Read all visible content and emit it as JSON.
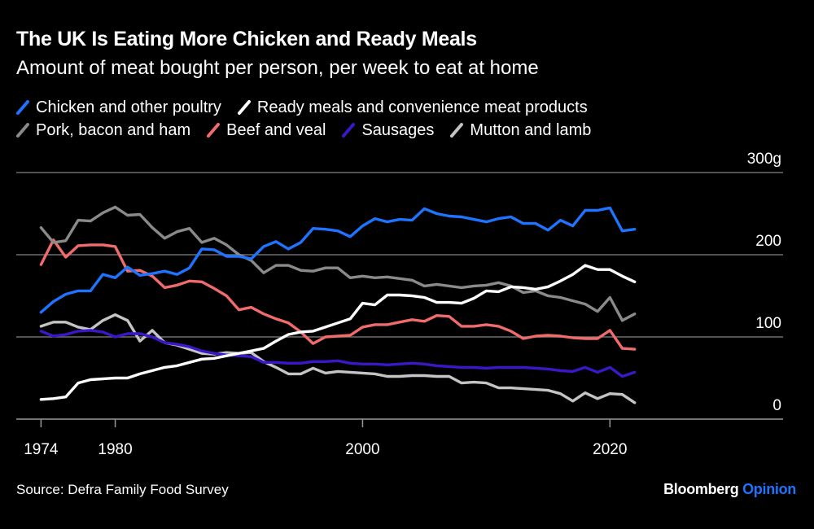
{
  "title": "The UK Is Eating More Chicken and Ready Meals",
  "subtitle": "Amount of meat bought per person, per week to eat at home",
  "source": "Source: Defra Family Food Survey",
  "brand": {
    "name": "Bloomberg",
    "suffix": "Opinion"
  },
  "colors": {
    "background": "#000000",
    "gridline": "#6e6e6e",
    "text": "#ffffff",
    "brand_accent": "#1f74ff"
  },
  "chart_data": {
    "type": "line",
    "title": "The UK Is Eating More Chicken and Ready Meals",
    "subtitle": "Amount of meat bought per person, per week to eat at home",
    "xlabel": "",
    "ylabel": "",
    "y_unit": "g",
    "ylim": [
      0,
      300
    ],
    "y_ticks": [
      {
        "value": 0,
        "label": "0"
      },
      {
        "value": 100,
        "label": "100"
      },
      {
        "value": 200,
        "label": "200"
      },
      {
        "value": 300,
        "label": "300g"
      }
    ],
    "xlim": [
      1972,
      2034
    ],
    "x_ticks": [
      {
        "value": 1974,
        "label": "1974"
      },
      {
        "value": 1980,
        "label": "1980"
      },
      {
        "value": 2000,
        "label": "2000"
      },
      {
        "value": 2020,
        "label": "2020"
      }
    ],
    "grid": true,
    "legend_position": "top",
    "x": [
      1974,
      1975,
      1976,
      1977,
      1978,
      1979,
      1980,
      1981,
      1982,
      1983,
      1984,
      1985,
      1986,
      1987,
      1988,
      1989,
      1990,
      1991,
      1992,
      1993,
      1994,
      1995,
      1996,
      1997,
      1998,
      1999,
      2000,
      2001,
      2002,
      2003,
      2004,
      2005,
      2006,
      2007,
      2008,
      2009,
      2010,
      2011,
      2012,
      2013,
      2014,
      2015,
      2016,
      2017,
      2018,
      2019,
      2020,
      2021,
      2022
    ],
    "series": [
      {
        "name": "Chicken and other poultry",
        "color": "#1f74ff",
        "values": [
          130,
          143,
          152,
          156,
          156,
          176,
          172,
          185,
          175,
          177,
          180,
          176,
          184,
          207,
          206,
          198,
          198,
          195,
          210,
          216,
          207,
          215,
          232,
          231,
          229,
          222,
          235,
          244,
          240,
          243,
          242,
          256,
          250,
          247,
          246,
          243,
          240,
          244,
          246,
          238,
          238,
          230,
          242,
          235,
          254,
          254,
          257,
          229,
          231
        ]
      },
      {
        "name": "Ready meals and convenience meat products",
        "color": "#ffffff",
        "values": [
          24,
          25,
          27,
          44,
          48,
          49,
          50,
          50,
          55,
          59,
          63,
          65,
          69,
          73,
          74,
          77,
          80,
          83,
          86,
          95,
          103,
          106,
          107,
          112,
          117,
          122,
          141,
          139,
          151,
          151,
          150,
          148,
          142,
          142,
          141,
          147,
          156,
          155,
          161,
          160,
          158,
          161,
          168,
          176,
          187,
          182,
          182,
          174,
          167
        ]
      },
      {
        "name": "Pork, bacon and ham",
        "color": "#8a8a8a",
        "values": [
          233,
          215,
          217,
          242,
          241,
          251,
          258,
          248,
          249,
          233,
          220,
          228,
          232,
          215,
          220,
          212,
          200,
          193,
          178,
          187,
          187,
          181,
          180,
          184,
          184,
          172,
          174,
          172,
          173,
          171,
          169,
          162,
          164,
          162,
          160,
          162,
          163,
          166,
          162,
          154,
          156,
          150,
          148,
          144,
          140,
          131,
          148,
          120,
          128
        ]
      },
      {
        "name": "Beef and veal",
        "color": "#f06b6b",
        "values": [
          188,
          218,
          197,
          211,
          212,
          212,
          210,
          180,
          181,
          174,
          160,
          163,
          168,
          167,
          159,
          150,
          133,
          136,
          128,
          122,
          117,
          106,
          92,
          100,
          101,
          102,
          112,
          115,
          115,
          118,
          121,
          119,
          126,
          125,
          113,
          113,
          115,
          113,
          107,
          98,
          101,
          102,
          101,
          99,
          98,
          98,
          108,
          86,
          85
        ]
      },
      {
        "name": "Sausages",
        "color": "#3a18c8",
        "values": [
          107,
          101,
          103,
          107,
          108,
          106,
          100,
          104,
          104,
          100,
          93,
          91,
          88,
          83,
          80,
          78,
          77,
          76,
          69,
          69,
          68,
          68,
          70,
          70,
          71,
          68,
          67,
          67,
          66,
          67,
          68,
          67,
          65,
          64,
          63,
          63,
          62,
          63,
          63,
          63,
          62,
          61,
          59,
          58,
          63,
          57,
          63,
          52,
          57
        ]
      },
      {
        "name": "Mutton and lamb",
        "color": "#c4c4c4",
        "values": [
          113,
          118,
          118,
          112,
          109,
          120,
          127,
          120,
          95,
          108,
          93,
          90,
          85,
          80,
          79,
          81,
          80,
          81,
          70,
          63,
          55,
          55,
          62,
          56,
          58,
          57,
          56,
          55,
          52,
          52,
          53,
          53,
          52,
          52,
          44,
          45,
          44,
          38,
          38,
          37,
          36,
          35,
          31,
          22,
          32,
          25,
          31,
          30,
          20
        ]
      }
    ]
  }
}
